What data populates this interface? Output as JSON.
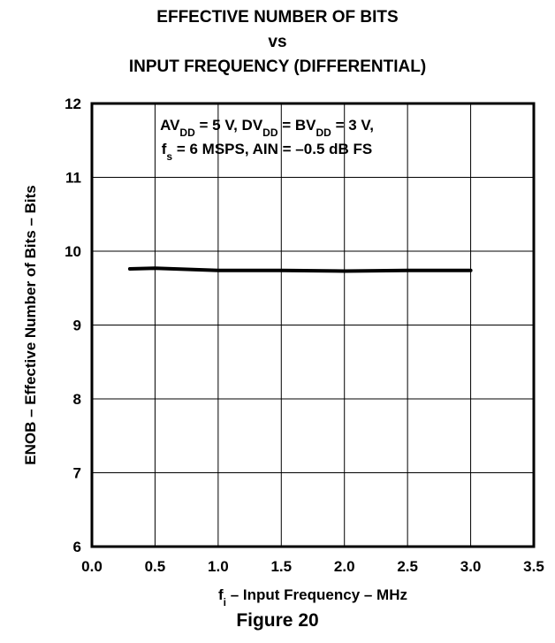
{
  "chart_data": {
    "type": "line",
    "title_lines": [
      "EFFECTIVE NUMBER OF BITS",
      "vs",
      "INPUT FREQUENCY (DIFFERENTIAL)"
    ],
    "xlabel": {
      "main": "f",
      "sub": "i",
      "rest": " – Input Frequency – MHz"
    },
    "ylabel": "ENOB – Effective Number of Bits – Bits",
    "xlim": [
      0,
      3.5
    ],
    "ylim": [
      6,
      12
    ],
    "x_ticks": [
      "0.0",
      "0.5",
      "1.0",
      "1.5",
      "2.0",
      "2.5",
      "3.0",
      "3.5"
    ],
    "y_ticks": [
      "6",
      "7",
      "8",
      "9",
      "10",
      "11",
      "12"
    ],
    "grid": true,
    "annotation": {
      "line1": [
        {
          "t": "AV"
        },
        {
          "t": "DD",
          "sub": true
        },
        {
          "t": " = 5 V, DV"
        },
        {
          "t": "DD",
          "sub": true
        },
        {
          "t": " = BV"
        },
        {
          "t": "DD",
          "sub": true
        },
        {
          "t": " = 3 V,"
        }
      ],
      "line2": [
        {
          "t": "f"
        },
        {
          "t": "s",
          "sub": true
        },
        {
          "t": " = 6 MSPS, AIN = –0.5 dB FS"
        }
      ]
    },
    "series": [
      {
        "x": [
          0.3,
          0.5,
          1.0,
          1.5,
          2.0,
          2.5,
          3.0
        ],
        "y": [
          9.76,
          9.77,
          9.74,
          9.74,
          9.73,
          9.74,
          9.74
        ]
      }
    ]
  },
  "figure_caption": "Figure 20"
}
